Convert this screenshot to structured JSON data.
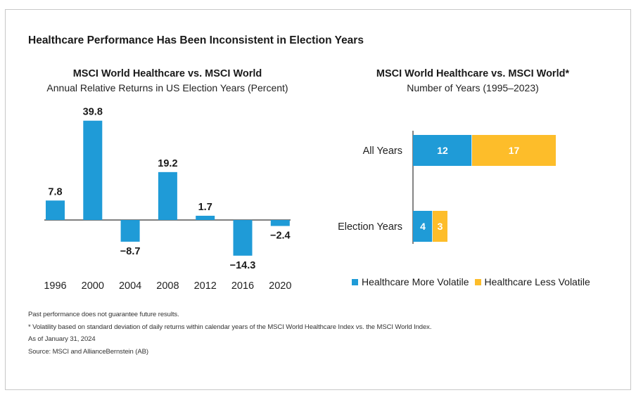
{
  "main_title": "Healthcare Performance Has Been Inconsistent in Election Years",
  "colors": {
    "blue": "#1f9bd7",
    "yellow": "#fdbd2a",
    "axis": "#333333"
  },
  "chart_data": [
    {
      "type": "bar",
      "title": "MSCI World Healthcare vs. MSCI World",
      "subtitle": "Annual Relative Returns in US Election Years (Percent)",
      "categories": [
        "1996",
        "2000",
        "2004",
        "2008",
        "2012",
        "2016",
        "2020"
      ],
      "values": [
        7.8,
        39.8,
        -8.7,
        19.2,
        1.7,
        -14.3,
        -2.4
      ],
      "value_labels": [
        "7.8",
        "39.8",
        "−8.7",
        "19.2",
        "1.7",
        "−14.3",
        "−2.4"
      ],
      "xlabel": "",
      "ylabel": "",
      "grid": false
    },
    {
      "type": "bar",
      "orientation": "horizontal",
      "stacked": true,
      "title": "MSCI World Healthcare vs. MSCI World*",
      "subtitle": "Number of Years (1995–2023)",
      "categories": [
        "All Years",
        "Election Years"
      ],
      "series": [
        {
          "name": "Healthcare More Volatile",
          "values": [
            12,
            4
          ],
          "color": "#1f9bd7"
        },
        {
          "name": "Healthcare Less Volatile",
          "values": [
            17,
            3
          ],
          "color": "#fdbd2a"
        }
      ],
      "legend": "bottom",
      "grid": false
    }
  ],
  "notes": [
    "Past performance does not guarantee future results.",
    "* Volatility based on standard deviation of daily returns within calendar years of the MSCI World Healthcare Index vs. the MSCI World Index.",
    "As of January 31, 2024",
    "Source: MSCI and AllianceBernstein (AB)"
  ]
}
